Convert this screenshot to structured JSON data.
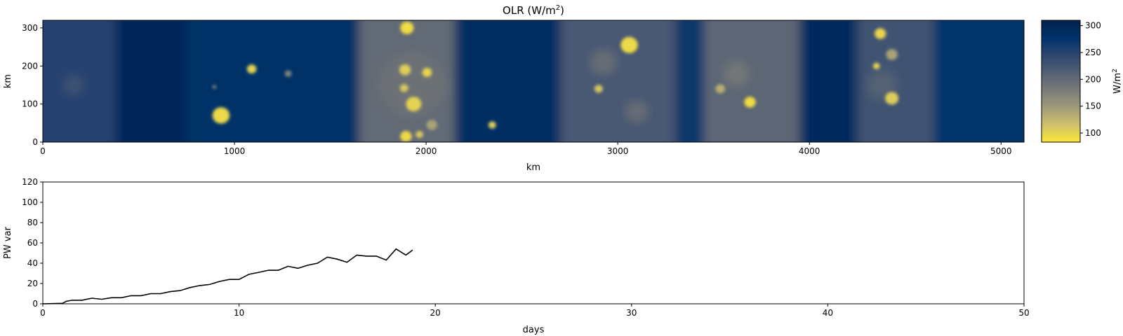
{
  "chart_data": [
    {
      "type": "heatmap",
      "title": "OLR (W/m",
      "title_sup": "2",
      "title_close": ")",
      "xlabel": "km",
      "ylabel": "km",
      "xlim": [
        0,
        5120
      ],
      "ylim": [
        0,
        320
      ],
      "xticks": [
        0,
        1000,
        2000,
        3000,
        4000,
        5000
      ],
      "yticks": [
        0,
        100,
        200,
        300
      ],
      "colorbar": {
        "label": "W/m",
        "label_sup": "2",
        "range": [
          83,
          310
        ],
        "ticks": [
          100,
          150,
          200,
          250,
          300
        ],
        "colormap": "cividis_r",
        "colors": [
          "#fde737",
          "#cfc06b",
          "#9f9a7a",
          "#7b7b78",
          "#525f74",
          "#2e4670",
          "#00326a",
          "#00204c"
        ]
      },
      "background_bands": [
        {
          "x": [
            0,
            380
          ],
          "value": 250
        },
        {
          "x": [
            380,
            750
          ],
          "value": 295
        },
        {
          "x": [
            750,
            1650
          ],
          "value": 280
        },
        {
          "x": [
            1650,
            2150
          ],
          "value": 200
        },
        {
          "x": [
            2150,
            2700
          ],
          "value": 285
        },
        {
          "x": [
            2700,
            3300
          ],
          "value": 220
        },
        {
          "x": [
            3300,
            3450
          ],
          "value": 270
        },
        {
          "x": [
            3450,
            3950
          ],
          "value": 205
        },
        {
          "x": [
            3950,
            4250
          ],
          "value": 290
        },
        {
          "x": [
            4250,
            4650
          ],
          "value": 230
        },
        {
          "x": [
            4650,
            5120
          ],
          "value": 275
        }
      ],
      "cloud_patches": [
        {
          "x": 930,
          "y": 70,
          "r": 45,
          "value": 95
        },
        {
          "x": 1090,
          "y": 192,
          "r": 25,
          "value": 100
        },
        {
          "x": 1280,
          "y": 180,
          "r": 18,
          "value": 170
        },
        {
          "x": 895,
          "y": 145,
          "r": 10,
          "value": 160
        },
        {
          "x": 1900,
          "y": 300,
          "r": 35,
          "value": 92
        },
        {
          "x": 1890,
          "y": 190,
          "r": 30,
          "value": 105
        },
        {
          "x": 1885,
          "y": 142,
          "r": 22,
          "value": 110
        },
        {
          "x": 1935,
          "y": 100,
          "r": 40,
          "value": 100
        },
        {
          "x": 1895,
          "y": 15,
          "r": 30,
          "value": 95
        },
        {
          "x": 1965,
          "y": 20,
          "r": 20,
          "value": 110
        },
        {
          "x": 2030,
          "y": 45,
          "r": 28,
          "value": 140
        },
        {
          "x": 2005,
          "y": 183,
          "r": 25,
          "value": 98
        },
        {
          "x": 2345,
          "y": 45,
          "r": 20,
          "value": 105
        },
        {
          "x": 2900,
          "y": 140,
          "r": 22,
          "value": 110
        },
        {
          "x": 3060,
          "y": 255,
          "r": 45,
          "value": 95
        },
        {
          "x": 2925,
          "y": 210,
          "r": 70,
          "value": 175
        },
        {
          "x": 3100,
          "y": 80,
          "r": 60,
          "value": 175
        },
        {
          "x": 3535,
          "y": 140,
          "r": 25,
          "value": 130
        },
        {
          "x": 3690,
          "y": 105,
          "r": 30,
          "value": 92
        },
        {
          "x": 3620,
          "y": 180,
          "r": 70,
          "value": 170
        },
        {
          "x": 4370,
          "y": 285,
          "r": 30,
          "value": 98
        },
        {
          "x": 4430,
          "y": 230,
          "r": 30,
          "value": 140
        },
        {
          "x": 4350,
          "y": 200,
          "r": 18,
          "value": 98
        },
        {
          "x": 4430,
          "y": 115,
          "r": 35,
          "value": 105
        },
        {
          "x": 4380,
          "y": 150,
          "r": 80,
          "value": 195
        },
        {
          "x": 160,
          "y": 150,
          "r": 55,
          "value": 210
        },
        {
          "x": 1930,
          "y": 150,
          "r": 180,
          "value": 185
        }
      ]
    },
    {
      "type": "line",
      "xlabel": "days",
      "ylabel": "PW var",
      "xlim": [
        0,
        50
      ],
      "ylim": [
        0,
        120
      ],
      "xticks": [
        0,
        10,
        20,
        30,
        40,
        50
      ],
      "yticks": [
        0,
        20,
        40,
        60,
        80,
        100,
        120
      ],
      "color": "#000000",
      "x": [
        0,
        0.5,
        1.0,
        1.2,
        1.5,
        2.0,
        2.5,
        3.0,
        3.5,
        4.0,
        4.5,
        5.0,
        5.5,
        6.0,
        6.5,
        7.0,
        7.5,
        8.0,
        8.5,
        9.0,
        9.5,
        10.0,
        10.5,
        11.0,
        11.5,
        12.0,
        12.5,
        13.0,
        13.5,
        14.0,
        14.5,
        15.0,
        15.5,
        16.0,
        16.5,
        17.0,
        17.5,
        18.0,
        18.5,
        18.85
      ],
      "y": [
        0,
        0.2,
        0.5,
        2.5,
        3.5,
        3.5,
        5.5,
        4.5,
        6,
        6,
        8,
        8,
        10,
        10,
        12,
        13,
        16,
        18,
        19,
        22,
        24,
        24,
        29,
        31,
        33,
        33,
        37,
        35,
        38,
        40,
        46,
        44,
        41,
        48,
        47,
        47,
        43,
        54,
        48,
        53
      ]
    }
  ]
}
